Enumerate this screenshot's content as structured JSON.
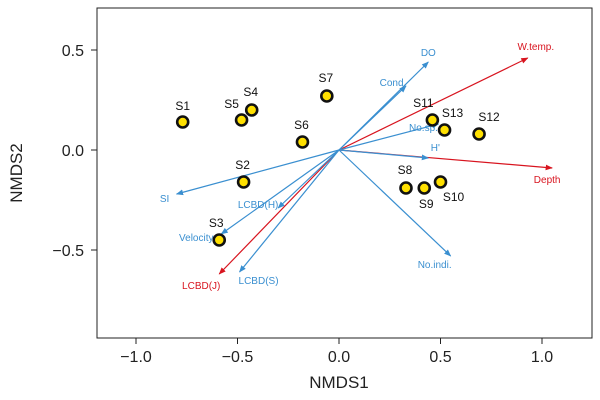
{
  "chart_data": {
    "type": "scatter",
    "xlabel": "NMDS1",
    "ylabel": "NMDS2",
    "xlim": [
      -1.3,
      1.3
    ],
    "ylim": [
      -0.9,
      0.7
    ],
    "x_ticks": [
      "−1.0",
      "−0.5",
      "0.0",
      "0.5",
      "1.0"
    ],
    "x_tick_values": [
      -1.0,
      -0.5,
      0.0,
      0.5,
      1.0
    ],
    "y_ticks": [
      "0.5",
      "0.0",
      "−0.5"
    ],
    "y_tick_values": [
      0.5,
      0.0,
      -0.5
    ],
    "grid": false,
    "colors": {
      "site_fill": "#ffe000",
      "site_stroke": "#111111",
      "env_vector": "#3a8fd0",
      "highlight_vector": "#d8141f"
    },
    "sites": [
      {
        "name": "S1",
        "x": -0.77,
        "y": 0.14
      },
      {
        "name": "S2",
        "x": -0.47,
        "y": -0.16
      },
      {
        "name": "S3",
        "x": -0.59,
        "y": -0.45
      },
      {
        "name": "S4",
        "x": -0.43,
        "y": 0.2
      },
      {
        "name": "S5",
        "x": -0.48,
        "y": 0.15
      },
      {
        "name": "S6",
        "x": -0.18,
        "y": 0.04
      },
      {
        "name": "S7",
        "x": -0.06,
        "y": 0.27
      },
      {
        "name": "S8",
        "x": 0.33,
        "y": -0.19
      },
      {
        "name": "S9",
        "x": 0.42,
        "y": -0.19
      },
      {
        "name": "S10",
        "x": 0.5,
        "y": -0.16
      },
      {
        "name": "S11",
        "x": 0.46,
        "y": 0.15
      },
      {
        "name": "S12",
        "x": 0.69,
        "y": 0.08
      },
      {
        "name": "S13",
        "x": 0.52,
        "y": 0.1
      }
    ],
    "vectors": [
      {
        "name": "W.temp.",
        "x": 0.93,
        "y": 0.46,
        "highlight": true
      },
      {
        "name": "Depth",
        "x": 1.05,
        "y": -0.09,
        "highlight": true
      },
      {
        "name": "LCBD(J)",
        "x": -0.59,
        "y": -0.62,
        "highlight": true
      },
      {
        "name": "DO",
        "x": 0.44,
        "y": 0.44,
        "highlight": false
      },
      {
        "name": "Cond.",
        "x": 0.33,
        "y": 0.32,
        "highlight": false
      },
      {
        "name": "No.sp.",
        "x": 0.49,
        "y": 0.13,
        "highlight": false
      },
      {
        "name": "H'",
        "x": 0.44,
        "y": -0.04,
        "highlight": false
      },
      {
        "name": "No.indi.",
        "x": 0.55,
        "y": -0.53,
        "highlight": false
      },
      {
        "name": "SI",
        "x": -0.8,
        "y": -0.22,
        "highlight": false
      },
      {
        "name": "Velocity",
        "x": -0.58,
        "y": -0.42,
        "highlight": false
      },
      {
        "name": "LCBD(H)",
        "x": -0.3,
        "y": -0.29,
        "highlight": false
      },
      {
        "name": "LCBD(S)",
        "x": -0.49,
        "y": -0.61,
        "highlight": false
      }
    ]
  }
}
